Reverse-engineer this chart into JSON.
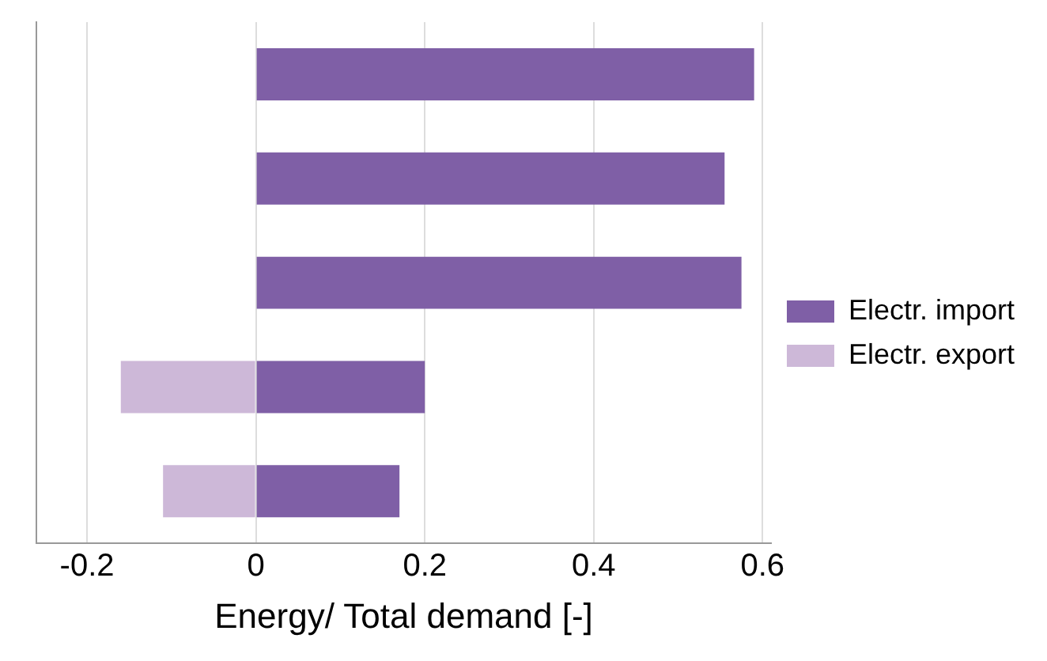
{
  "chart_data": {
    "type": "bar",
    "orientation": "horizontal",
    "stacked": true,
    "xlabel": "Energy/ Total demand [-]",
    "categories": [
      null,
      null,
      null,
      null,
      null
    ],
    "series": [
      {
        "name": "Electr. import",
        "color": "#7f5fa6",
        "values": [
          0.59,
          0.555,
          0.575,
          0.2,
          0.17
        ]
      },
      {
        "name": "Electr. export",
        "color": "#cdb8d8",
        "values": [
          null,
          null,
          null,
          -0.16,
          -0.11
        ]
      }
    ],
    "xlim": [
      -0.26,
      0.61
    ],
    "xticks": [
      -0.2,
      0,
      0.2,
      0.4,
      0.6
    ],
    "grid": "x",
    "legend": "right",
    "tick_labels": "x"
  }
}
